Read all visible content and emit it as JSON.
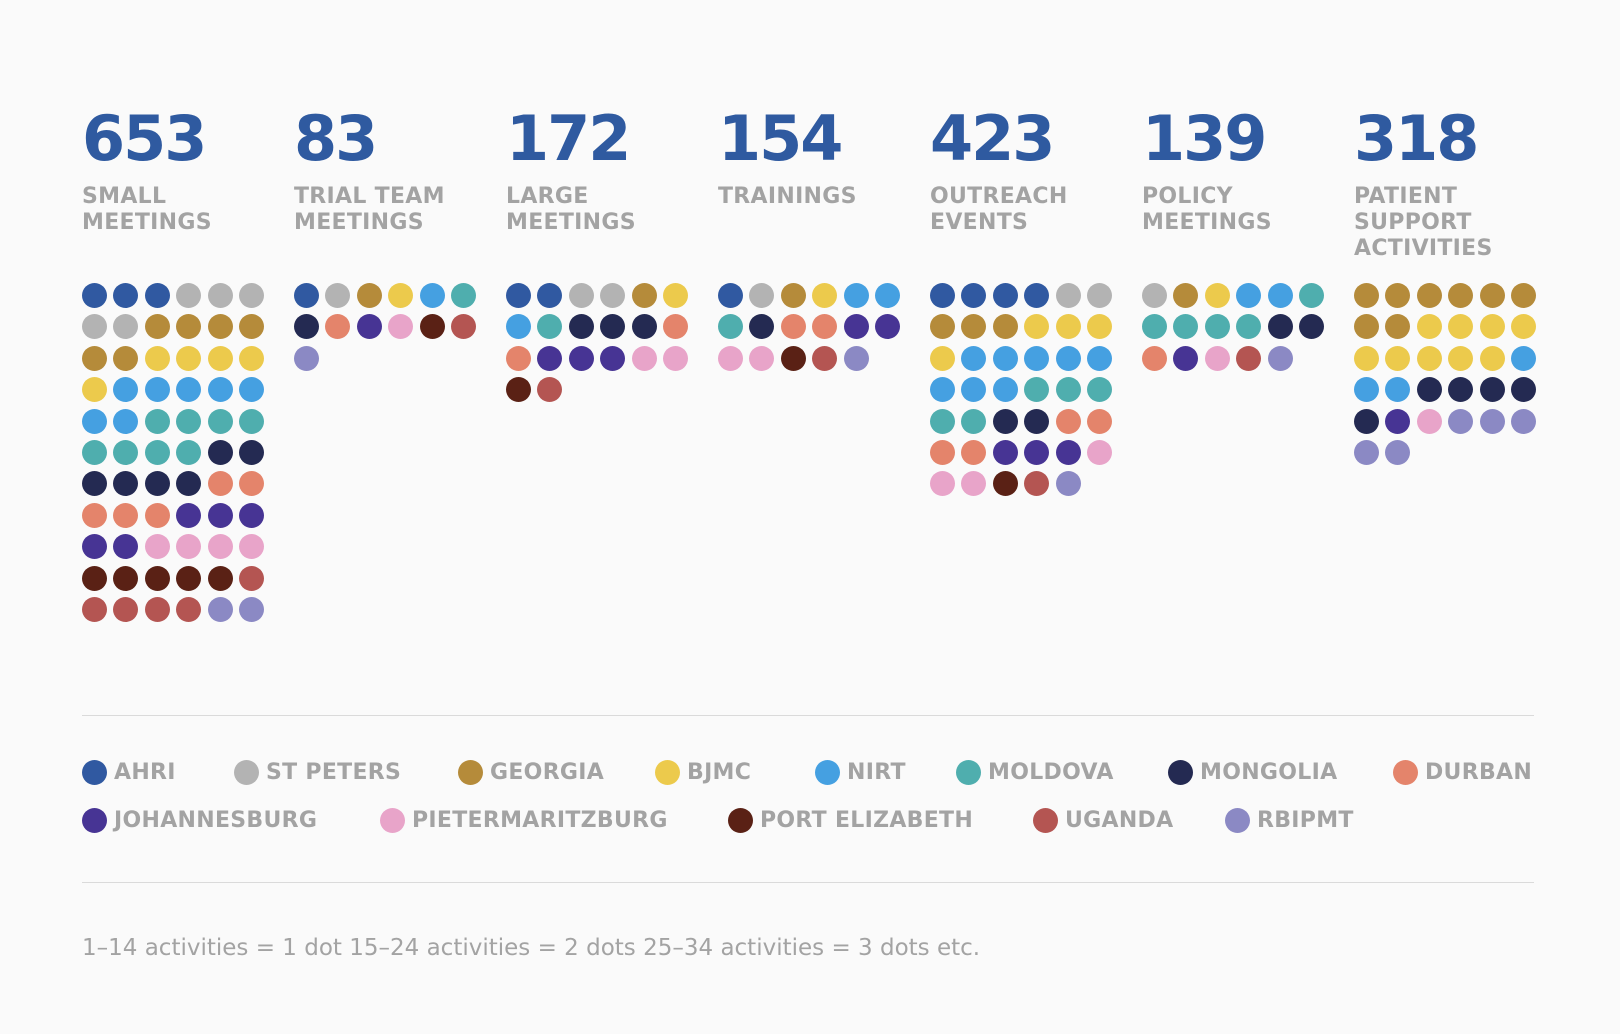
{
  "chart_data": {
    "type": "dot-matrix",
    "title": "",
    "categories": [
      "SMALL MEETINGS",
      "TRIAL TEAM MEETINGS",
      "LARGE MEETINGS",
      "TRAININGS",
      "OUTREACH EVENTS",
      "POLICY MEETINGS",
      "PATIENT SUPPORT ACTIVITIES"
    ],
    "sites": [
      {
        "name": "AHRI",
        "color": "#3059a1"
      },
      {
        "name": "ST PETERS",
        "color": "#b3b3b3"
      },
      {
        "name": "GEORGIA",
        "color": "#b58b3a"
      },
      {
        "name": "BJMC",
        "color": "#ecca4c"
      },
      {
        "name": "NIRT",
        "color": "#45a0e1"
      },
      {
        "name": "MOLDOVA",
        "color": "#4faeae"
      },
      {
        "name": "MONGOLIA",
        "color": "#242a52"
      },
      {
        "name": "DURBAN",
        "color": "#e4846b"
      },
      {
        "name": "JOHANNESBURG",
        "color": "#473494"
      },
      {
        "name": "PIETERMARITZBURG",
        "color": "#e8a4c9"
      },
      {
        "name": "PORT ELIZABETH",
        "color": "#5a2115"
      },
      {
        "name": "UGANDA",
        "color": "#b45552"
      },
      {
        "name": "RBIPMT",
        "color": "#8b89c4"
      }
    ],
    "series": [
      {
        "total": "653",
        "label": "SMALL\nMEETINGS",
        "dots": [
          3,
          5,
          6,
          5,
          7,
          8,
          6,
          5,
          5,
          4,
          5,
          5,
          2
        ]
      },
      {
        "total": "83",
        "label": "TRIAL TEAM\nMEETINGS",
        "dots": [
          1,
          1,
          1,
          1,
          1,
          1,
          1,
          1,
          1,
          1,
          1,
          1,
          1
        ]
      },
      {
        "total": "172",
        "label": "LARGE\nMEETINGS",
        "dots": [
          2,
          2,
          1,
          1,
          1,
          1,
          3,
          2,
          3,
          2,
          1,
          1,
          0
        ]
      },
      {
        "total": "154",
        "label": "TRAININGS",
        "dots": [
          1,
          1,
          1,
          1,
          2,
          1,
          1,
          2,
          2,
          2,
          1,
          1,
          1
        ]
      },
      {
        "total": "423",
        "label": "OUTREACH\nEVENTS",
        "dots": [
          4,
          2,
          3,
          4,
          8,
          5,
          2,
          4,
          3,
          3,
          1,
          1,
          1
        ]
      },
      {
        "total": "139",
        "label": "POLICY\nMEETINGS",
        "dots": [
          0,
          1,
          1,
          1,
          2,
          5,
          2,
          1,
          1,
          1,
          0,
          1,
          1
        ]
      },
      {
        "total": "318",
        "label": "PATIENT\nSUPPORT\nACTIVITIES",
        "dots": [
          0,
          0,
          8,
          9,
          3,
          0,
          5,
          0,
          1,
          1,
          0,
          0,
          5
        ]
      }
    ]
  },
  "note": "1–14 activities = 1 dot  15–24 activities = 2 dots  25–34 activities = 3 dots  etc."
}
